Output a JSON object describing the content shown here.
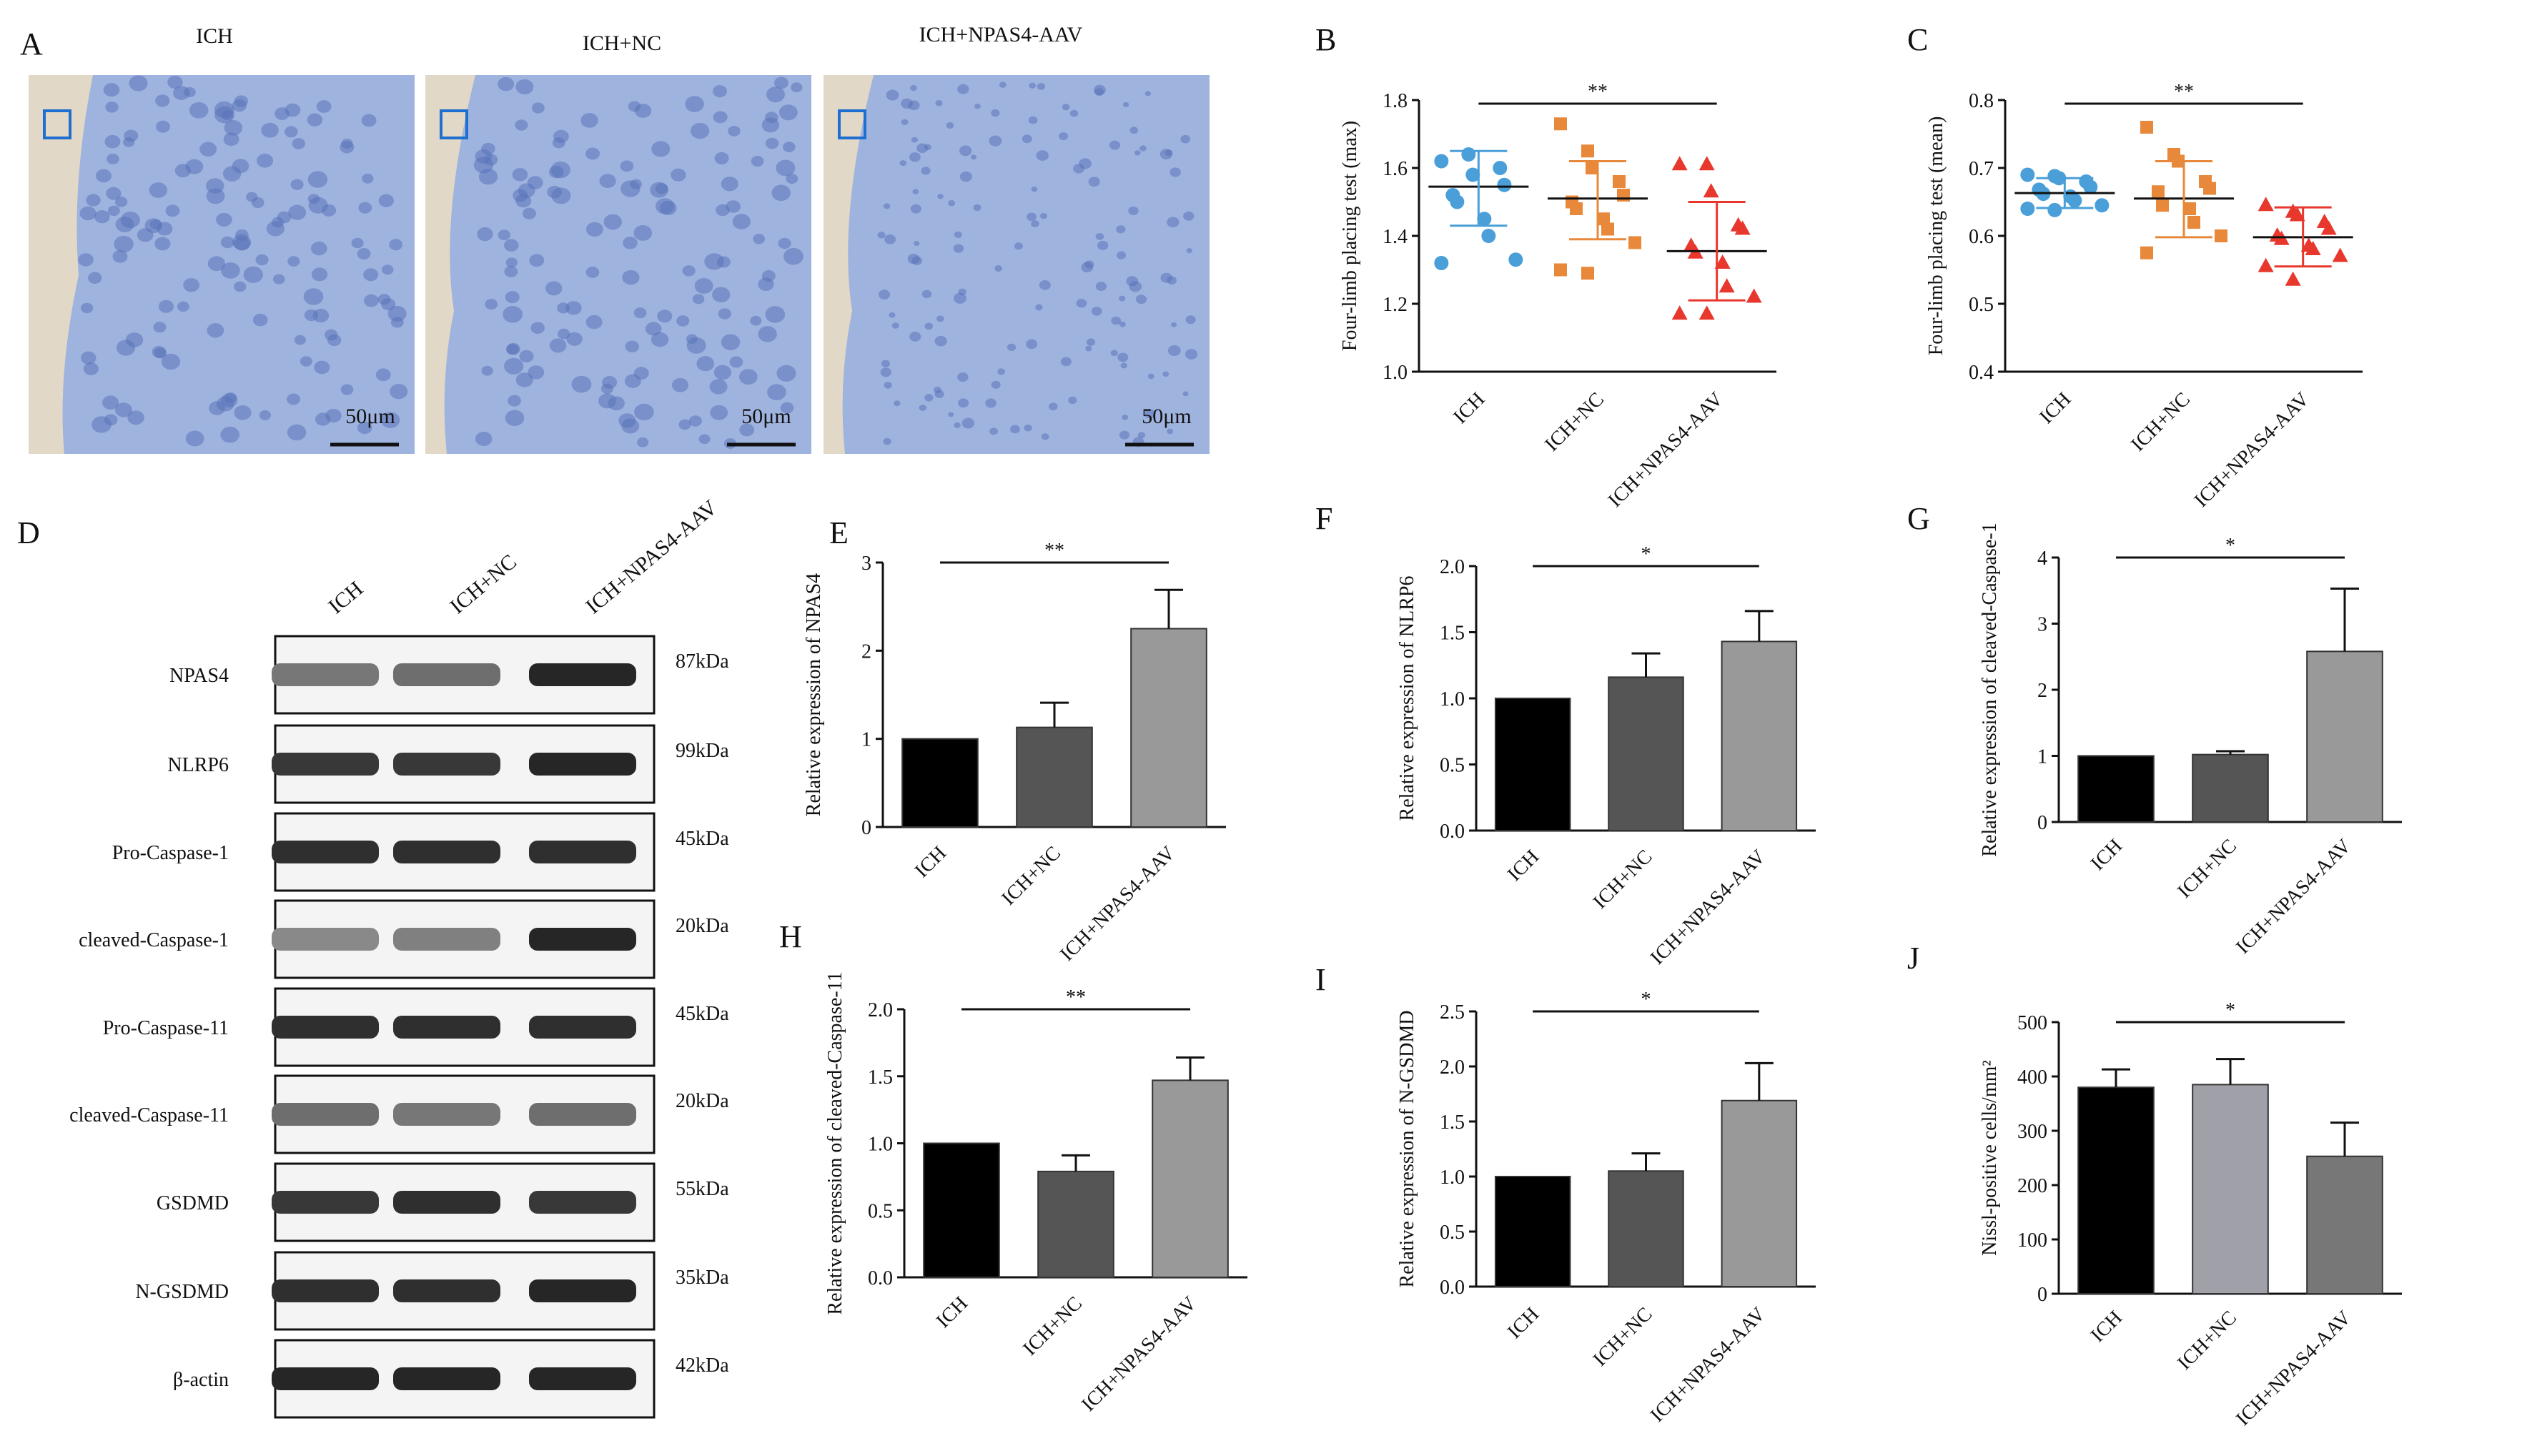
{
  "panel_letters": {
    "A": "A",
    "B": "B",
    "C": "C",
    "D": "D",
    "E": "E",
    "F": "F",
    "G": "G",
    "H": "H",
    "I": "I",
    "J": "J"
  },
  "histology": {
    "titles": [
      "ICH",
      "ICH+NC",
      "ICH+NPAS4-AAV"
    ],
    "scale_bar": "50μm",
    "colors": {
      "tissue": "#9fb3df",
      "nucleus": "#5a72b8",
      "debris": "#e8dcc4",
      "inset_box": "#1e6fd0"
    }
  },
  "western": {
    "lanes": [
      "ICH",
      "ICH+NC",
      "ICH+NPAS4-AAV"
    ],
    "rows": [
      {
        "protein": "NPAS4",
        "kda": "87kDa",
        "intensity": [
          0.45,
          0.5,
          0.9
        ]
      },
      {
        "protein": "NLRP6",
        "kda": "99kDa",
        "intensity": [
          0.8,
          0.8,
          0.9
        ]
      },
      {
        "protein": "Pro-Caspase-1",
        "kda": "45kDa",
        "intensity": [
          0.85,
          0.85,
          0.85
        ]
      },
      {
        "protein": "cleaved-Caspase-1",
        "kda": "20kDa",
        "intensity": [
          0.35,
          0.4,
          0.9
        ]
      },
      {
        "protein": "Pro-Caspase-11",
        "kda": "45kDa",
        "intensity": [
          0.85,
          0.85,
          0.85
        ]
      },
      {
        "protein": "cleaved-Caspase-11",
        "kda": "20kDa",
        "intensity": [
          0.5,
          0.45,
          0.5
        ]
      },
      {
        "protein": "GSDMD",
        "kda": "55kDa",
        "intensity": [
          0.8,
          0.85,
          0.8
        ]
      },
      {
        "protein": "N-GSDMD",
        "kda": "35kDa",
        "intensity": [
          0.85,
          0.85,
          0.9
        ]
      },
      {
        "protein": "β-actin",
        "kda": "42kDa",
        "intensity": [
          0.9,
          0.9,
          0.9
        ]
      }
    ]
  },
  "chart_data": [
    {
      "id": "B",
      "type": "scatter",
      "categories": [
        "ICH",
        "ICH+NC",
        "ICH+NPAS4-AAV"
      ],
      "ylabel": "Four-limb placing test (max)",
      "ylim": [
        1.0,
        1.8
      ],
      "yticks": [
        "1.0",
        "1.2",
        "1.4",
        "1.6",
        "1.8"
      ],
      "significance": "**",
      "series": [
        {
          "values": [
            1.62,
            1.64,
            1.58,
            1.6,
            1.55,
            1.52,
            1.5,
            1.45,
            1.4,
            1.33,
            1.32
          ],
          "mean": 1.545,
          "sd_low": 1.43,
          "sd_high": 1.65,
          "color": "#4a9fd8",
          "marker": "circle"
        },
        {
          "values": [
            1.73,
            1.65,
            1.6,
            1.56,
            1.52,
            1.5,
            1.48,
            1.45,
            1.42,
            1.38,
            1.3,
            1.29
          ],
          "mean": 1.51,
          "sd_low": 1.39,
          "sd_high": 1.62,
          "color": "#e8883a",
          "marker": "square"
        },
        {
          "values": [
            1.61,
            1.61,
            1.53,
            1.43,
            1.42,
            1.37,
            1.35,
            1.32,
            1.25,
            1.22,
            1.17,
            1.17
          ],
          "mean": 1.355,
          "sd_low": 1.21,
          "sd_high": 1.5,
          "color": "#e8382e",
          "marker": "triangle"
        }
      ]
    },
    {
      "id": "C",
      "type": "scatter",
      "categories": [
        "ICH",
        "ICH+NC",
        "ICH+NPAS4-AAV"
      ],
      "ylabel": "Four-limb placing test (mean)",
      "ylim": [
        0.4,
        0.8
      ],
      "yticks": [
        "0.4",
        "0.5",
        "0.6",
        "0.7",
        "0.8"
      ],
      "significance": "**",
      "series": [
        {
          "values": [
            0.69,
            0.688,
            0.685,
            0.68,
            0.672,
            0.668,
            0.662,
            0.658,
            0.652,
            0.645,
            0.64,
            0.638
          ],
          "mean": 0.663,
          "sd_low": 0.641,
          "sd_high": 0.685,
          "color": "#4a9fd8",
          "marker": "circle"
        },
        {
          "values": [
            0.76,
            0.72,
            0.71,
            0.68,
            0.67,
            0.665,
            0.645,
            0.64,
            0.62,
            0.6,
            0.575
          ],
          "mean": 0.655,
          "sd_low": 0.598,
          "sd_high": 0.71,
          "color": "#e8883a",
          "marker": "square"
        },
        {
          "values": [
            0.645,
            0.635,
            0.63,
            0.62,
            0.61,
            0.6,
            0.595,
            0.585,
            0.58,
            0.57,
            0.555,
            0.535
          ],
          "mean": 0.598,
          "sd_low": 0.555,
          "sd_high": 0.642,
          "color": "#e8382e",
          "marker": "triangle"
        }
      ]
    },
    {
      "id": "E",
      "type": "bar",
      "categories": [
        "ICH",
        "ICH+NC",
        "ICH+NPAS4-AAV"
      ],
      "values": [
        1.0,
        1.13,
        2.25
      ],
      "errors": [
        0,
        0.28,
        0.44
      ],
      "ylabel": "Relative expression of NPAS4",
      "ylim": [
        0,
        3
      ],
      "yticks": [
        "0",
        "1",
        "2",
        "3"
      ],
      "significance": "**",
      "colors": [
        "#000000",
        "#555555",
        "#999999"
      ]
    },
    {
      "id": "F",
      "type": "bar",
      "categories": [
        "ICH",
        "ICH+NC",
        "ICH+NPAS4-AAV"
      ],
      "values": [
        1.0,
        1.16,
        1.43
      ],
      "errors": [
        0,
        0.18,
        0.23
      ],
      "ylabel": "Relative expression of NLRP6",
      "ylim": [
        0,
        2.0
      ],
      "yticks": [
        "0.0",
        "0.5",
        "1.0",
        "1.5",
        "2.0"
      ],
      "significance": "*",
      "colors": [
        "#000000",
        "#555555",
        "#999999"
      ]
    },
    {
      "id": "G",
      "type": "bar",
      "categories": [
        "ICH",
        "ICH+NC",
        "ICH+NPAS4-AAV"
      ],
      "values": [
        1.0,
        1.02,
        2.58
      ],
      "errors": [
        0,
        0.05,
        0.95
      ],
      "ylabel": "Relative expression of cleaved-Caspase-1",
      "ylim": [
        0,
        4
      ],
      "yticks": [
        "0",
        "1",
        "2",
        "3",
        "4"
      ],
      "significance": "*",
      "colors": [
        "#000000",
        "#555555",
        "#999999"
      ]
    },
    {
      "id": "H",
      "type": "bar",
      "categories": [
        "ICH",
        "ICH+NC",
        "ICH+NPAS4-AAV"
      ],
      "values": [
        1.0,
        0.79,
        1.47
      ],
      "errors": [
        0,
        0.12,
        0.17
      ],
      "ylabel": "Relative expression of cleaved-Caspase-11",
      "ylim": [
        0,
        2.0
      ],
      "yticks": [
        "0.0",
        "0.5",
        "1.0",
        "1.5",
        "2.0"
      ],
      "significance": "**",
      "colors": [
        "#000000",
        "#555555",
        "#999999"
      ]
    },
    {
      "id": "I",
      "type": "bar",
      "categories": [
        "ICH",
        "ICH+NC",
        "ICH+NPAS4-AAV"
      ],
      "values": [
        1.0,
        1.05,
        1.69
      ],
      "errors": [
        0,
        0.16,
        0.34
      ],
      "ylabel": "Relative expression of N-GSDMD",
      "ylim": [
        0,
        2.5
      ],
      "yticks": [
        "0.0",
        "0.5",
        "1.0",
        "1.5",
        "2.0",
        "2.5"
      ],
      "significance": "*",
      "colors": [
        "#000000",
        "#555555",
        "#999999"
      ]
    },
    {
      "id": "J",
      "type": "bar",
      "categories": [
        "ICH",
        "ICH+NC",
        "ICH+NPAS4-AAV"
      ],
      "values": [
        380,
        385,
        253
      ],
      "errors": [
        33,
        47,
        62
      ],
      "ylabel": "Nissl-positive cells/mm²",
      "ylim": [
        0,
        500
      ],
      "yticks": [
        "0",
        "100",
        "200",
        "300",
        "400",
        "500"
      ],
      "significance": "*",
      "colors": [
        "#000000",
        "#a0a0a8",
        "#777777"
      ]
    }
  ]
}
